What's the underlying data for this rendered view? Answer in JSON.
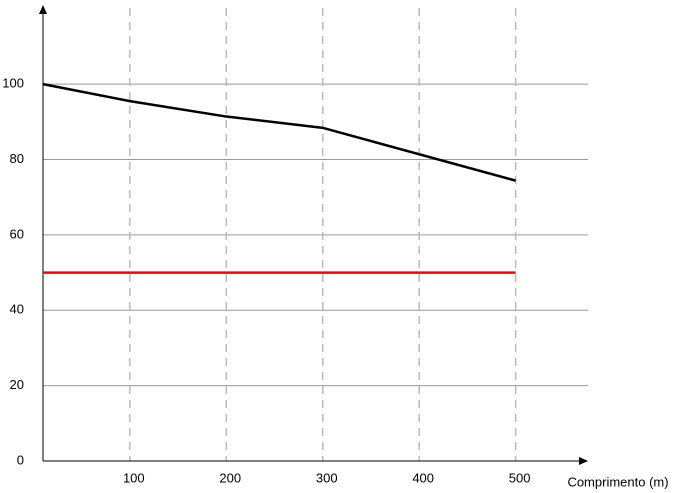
{
  "chart_data": {
    "type": "line",
    "x_label": "Comprimento (m)",
    "x": [
      10,
      100,
      200,
      300,
      500
    ],
    "series": [
      {
        "color": "#000000",
        "values": [
          100,
          95.5,
          91.4,
          88.4,
          74.4
        ]
      },
      {
        "color": "#ff0000",
        "values": [
          50,
          50,
          50,
          50,
          50
        ]
      }
    ],
    "xlim": [
      10,
      575
    ],
    "ylim": [
      0,
      121
    ],
    "xticks": [
      100,
      200,
      300,
      400,
      500
    ],
    "yticks": [
      0,
      20,
      40,
      60,
      80,
      100
    ],
    "grid": true
  }
}
